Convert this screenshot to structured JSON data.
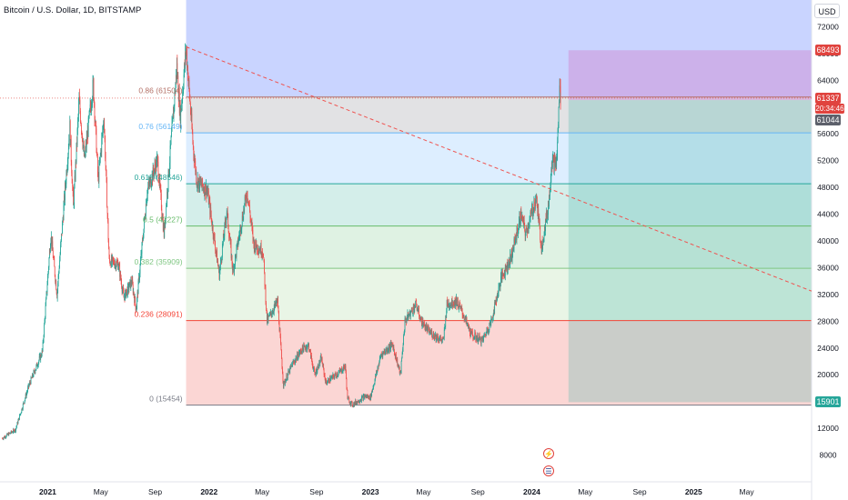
{
  "header": {
    "symbol_title": "Bitcoin / U.S. Dollar, 1D, BITSTAMP",
    "currency_label": "USD"
  },
  "price_tags": {
    "target_high": "68493",
    "last_price": "61337",
    "countdown": "20:34:46",
    "prev_close": "61044",
    "target_low": "15901"
  },
  "colors": {
    "up": "#26a69a",
    "down": "#ef5350",
    "price_tag_red": "#e0433e",
    "price_tag_grey": "#5d606b",
    "trendline": "#ef5350",
    "short_target": "#ce93d8",
    "short_stop": "#4db6ac"
  },
  "events": [
    {
      "name": "lightning-icon",
      "glyph": "⚡"
    },
    {
      "name": "us-flag-icon",
      "glyph": "☰"
    }
  ],
  "chart_data": {
    "type": "candlestick",
    "symbol": "BTCUSD",
    "exchange": "BITSTAMP",
    "interval": "1D",
    "y_axis": {
      "ticks": [
        8000,
        12000,
        16000,
        20000,
        24000,
        28000,
        32000,
        36000,
        40000,
        44000,
        48000,
        52000,
        56000,
        60000,
        64000,
        68000,
        72000
      ],
      "ylim": [
        4000,
        76000
      ]
    },
    "x_axis": {
      "ticks": [
        {
          "label": "2021",
          "date": "2021-01-01"
        },
        {
          "label": "May",
          "date": "2021-05-01"
        },
        {
          "label": "Sep",
          "date": "2021-09-01"
        },
        {
          "label": "2022",
          "date": "2022-01-01"
        },
        {
          "label": "May",
          "date": "2022-05-01"
        },
        {
          "label": "Sep",
          "date": "2022-09-01"
        },
        {
          "label": "2023",
          "date": "2023-01-01"
        },
        {
          "label": "May",
          "date": "2023-05-01"
        },
        {
          "label": "Sep",
          "date": "2023-09-01"
        },
        {
          "label": "2024",
          "date": "2024-01-01"
        },
        {
          "label": "May",
          "date": "2024-05-01"
        },
        {
          "label": "Sep",
          "date": "2024-09-01"
        },
        {
          "label": "2025",
          "date": "2025-01-01"
        },
        {
          "label": "May",
          "date": "2025-05-01"
        }
      ],
      "xlim": [
        "2020-09-15",
        "2025-09-25"
      ]
    },
    "price_path": [
      [
        "2020-09-20",
        10500
      ],
      [
        "2020-10-20",
        11800
      ],
      [
        "2020-11-20",
        18500
      ],
      [
        "2020-12-20",
        23500
      ],
      [
        "2021-01-08",
        41000
      ],
      [
        "2021-01-22",
        32000
      ],
      [
        "2021-02-20",
        57000
      ],
      [
        "2021-02-28",
        45000
      ],
      [
        "2021-03-13",
        61000
      ],
      [
        "2021-03-25",
        52000
      ],
      [
        "2021-04-14",
        63500
      ],
      [
        "2021-04-25",
        49000
      ],
      [
        "2021-05-08",
        58500
      ],
      [
        "2021-05-20",
        37000
      ],
      [
        "2021-06-10",
        36500
      ],
      [
        "2021-06-22",
        31500
      ],
      [
        "2021-07-10",
        34000
      ],
      [
        "2021-07-20",
        29800
      ],
      [
        "2021-08-14",
        47500
      ],
      [
        "2021-09-06",
        52000
      ],
      [
        "2021-09-21",
        41000
      ],
      [
        "2021-10-20",
        66000
      ],
      [
        "2021-10-28",
        58500
      ],
      [
        "2021-11-10",
        68800
      ],
      [
        "2021-11-26",
        54000
      ],
      [
        "2021-12-04",
        49000
      ],
      [
        "2021-12-28",
        47500
      ],
      [
        "2022-01-10",
        41500
      ],
      [
        "2022-01-24",
        35000
      ],
      [
        "2022-02-10",
        44500
      ],
      [
        "2022-02-24",
        35500
      ],
      [
        "2022-03-28",
        47500
      ],
      [
        "2022-04-12",
        39500
      ],
      [
        "2022-05-03",
        38500
      ],
      [
        "2022-05-12",
        28000
      ],
      [
        "2022-06-05",
        31000
      ],
      [
        "2022-06-18",
        18500
      ],
      [
        "2022-07-08",
        21500
      ],
      [
        "2022-07-30",
        23800
      ],
      [
        "2022-08-14",
        24400
      ],
      [
        "2022-08-28",
        20000
      ],
      [
        "2022-09-12",
        22500
      ],
      [
        "2022-09-22",
        18800
      ],
      [
        "2022-10-25",
        20500
      ],
      [
        "2022-11-05",
        21300
      ],
      [
        "2022-11-10",
        16500
      ],
      [
        "2022-11-21",
        15500
      ],
      [
        "2022-12-20",
        16800
      ],
      [
        "2023-01-01",
        16600
      ],
      [
        "2023-01-25",
        23000
      ],
      [
        "2023-02-20",
        24500
      ],
      [
        "2023-03-10",
        20000
      ],
      [
        "2023-03-20",
        28000
      ],
      [
        "2023-04-14",
        30500
      ],
      [
        "2023-04-26",
        28000
      ],
      [
        "2023-05-12",
        26500
      ],
      [
        "2023-06-15",
        25000
      ],
      [
        "2023-06-23",
        30500
      ],
      [
        "2023-07-14",
        31000
      ],
      [
        "2023-07-28",
        29300
      ],
      [
        "2023-08-17",
        26000
      ],
      [
        "2023-09-11",
        25100
      ],
      [
        "2023-10-01",
        27900
      ],
      [
        "2023-10-24",
        34500
      ],
      [
        "2023-11-15",
        37500
      ],
      [
        "2023-12-08",
        44000
      ],
      [
        "2023-12-18",
        41000
      ],
      [
        "2024-01-11",
        46500
      ],
      [
        "2024-01-23",
        39000
      ],
      [
        "2024-02-08",
        45500
      ],
      [
        "2024-02-15",
        52000
      ],
      [
        "2024-02-26",
        51500
      ],
      [
        "2024-03-05",
        64000
      ],
      [
        "2024-03-06",
        61337
      ]
    ],
    "fibonacci": {
      "levels": [
        {
          "label": "0.86 (61504)",
          "value": 61504,
          "color": "#b37066"
        },
        {
          "label": "0.76 (56149)",
          "value": 56149,
          "color": "#64b5f6"
        },
        {
          "label": "0.618 (48546)",
          "value": 48546,
          "color": "#26a69a"
        },
        {
          "label": "0.5 (42227)",
          "value": 42227,
          "color": "#66bb6a"
        },
        {
          "label": "0.382 (35909)",
          "value": 35909,
          "color": "#81c784"
        },
        {
          "label": "0.236 (28091)",
          "value": 28091,
          "color": "#f44336"
        },
        {
          "label": "0 (15454)",
          "value": 15454,
          "color": "#787b86"
        }
      ],
      "top_zone_color": "#c9d4ff",
      "zone_colors": [
        "#e2e2e4",
        "#ddeeff",
        "#d4eeea",
        "#dff2e3",
        "#e9f5e6",
        "#fbd6d4"
      ],
      "start": "2021-11-10"
    },
    "trendline": {
      "from": [
        "2021-11-10",
        69000
      ],
      "to": [
        "2025-09-25",
        32500
      ],
      "style": "dashed"
    },
    "position_tool": {
      "start": "2024-03-24",
      "end": "2025-09-25",
      "target": 68493,
      "entry": 61044,
      "stop": 15901
    }
  }
}
